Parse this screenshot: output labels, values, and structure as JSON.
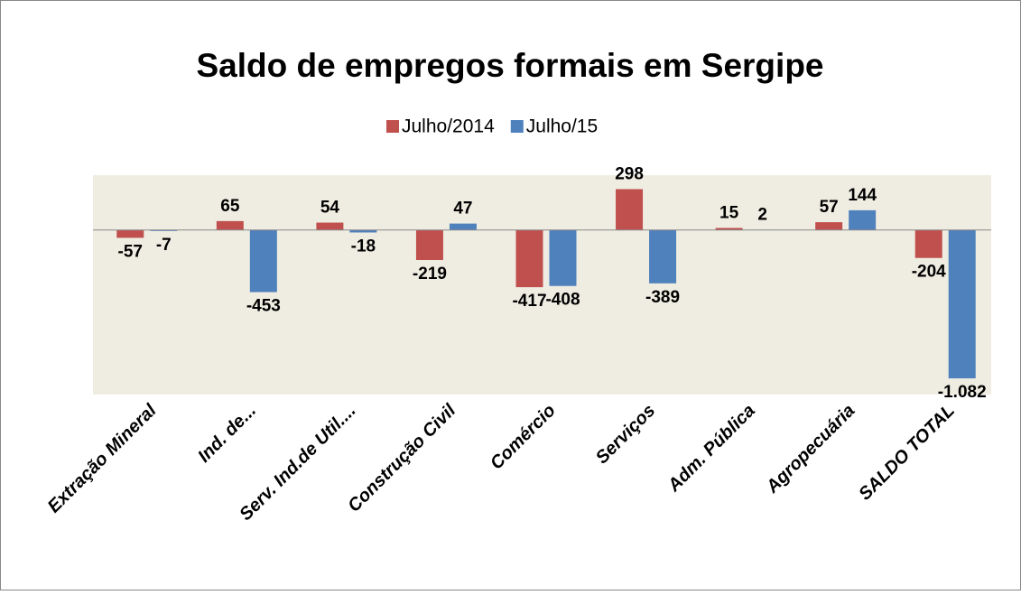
{
  "chart_data": {
    "type": "bar",
    "title": "Saldo de empregos formais em Sergipe",
    "categories": [
      "Extração Mineral",
      "Ind. de...",
      "Serv. Ind.de Util....",
      "Construção Civil",
      "Comércio",
      "Serviços",
      "Adm. Pública",
      "Agropecuária",
      "SALDO TOTAL"
    ],
    "series": [
      {
        "name": "Julho/2014",
        "color": "#c0504d",
        "values": [
          -57,
          65,
          54,
          -219,
          -417,
          298,
          15,
          57,
          -204
        ],
        "value_labels": [
          "-57",
          "65",
          "54",
          "-219",
          "-417",
          "298",
          "15",
          "57",
          "-204"
        ]
      },
      {
        "name": "Julho/15",
        "color": "#4f81bd",
        "values": [
          -7,
          -453,
          -18,
          47,
          -408,
          -389,
          2,
          144,
          -1082
        ],
        "value_labels": [
          "-7",
          "-453",
          "-18",
          "47",
          "-408",
          "-389",
          "2",
          "144",
          "-1.082"
        ]
      }
    ],
    "ylim": [
      -1200,
      400
    ]
  }
}
